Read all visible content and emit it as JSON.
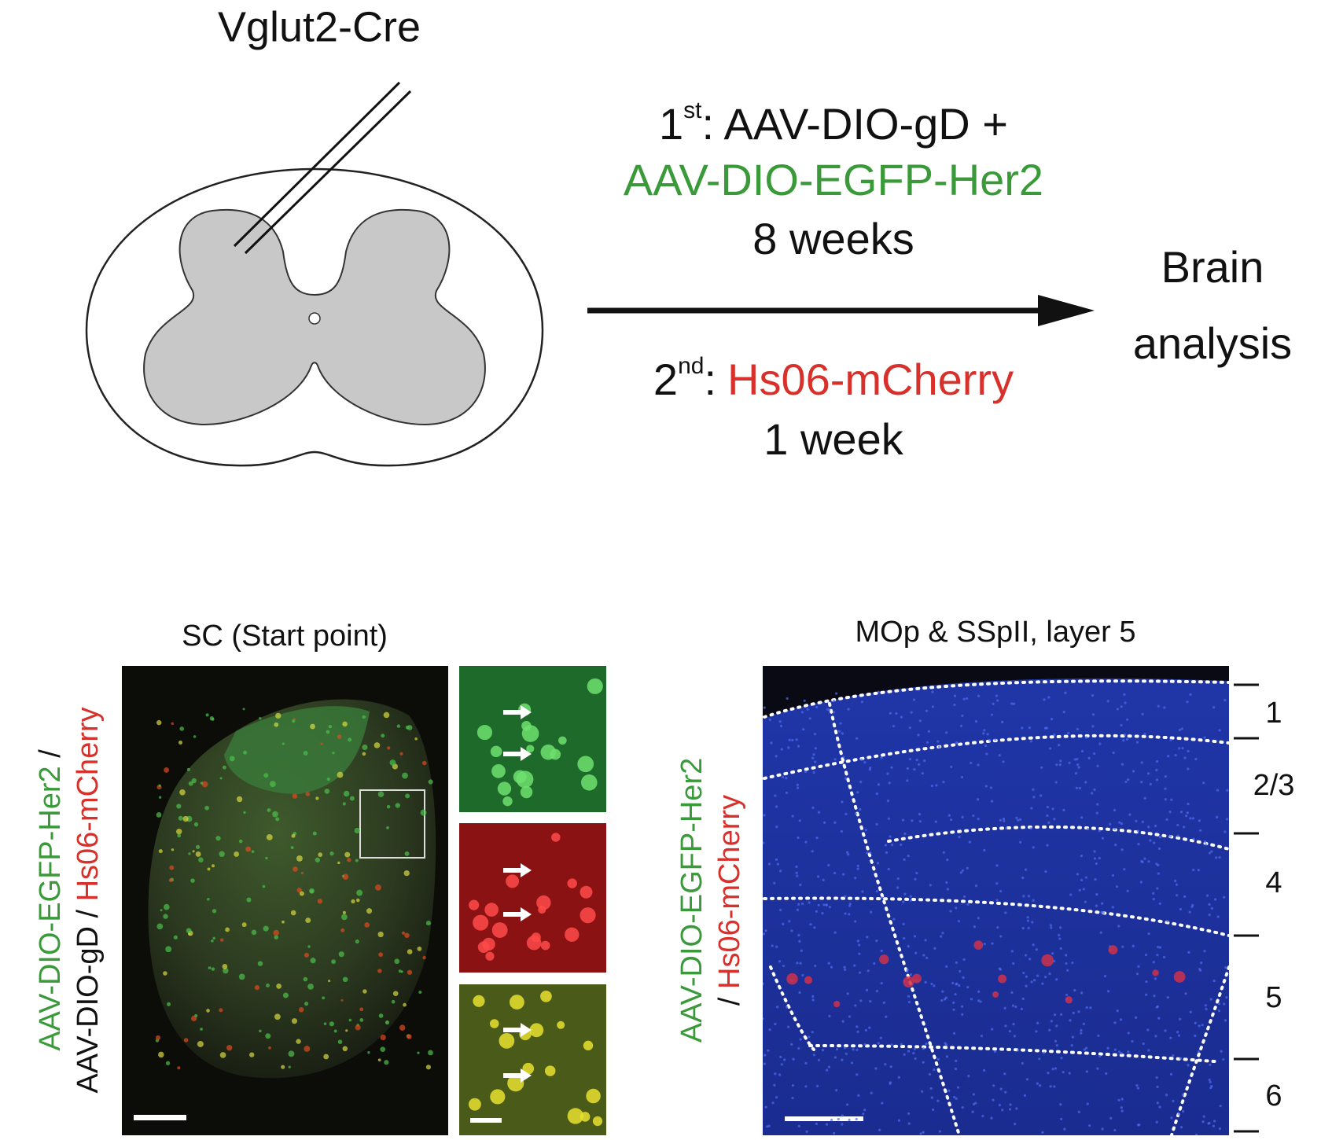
{
  "schematic": {
    "mouse_line": "Vglut2-Cre",
    "step1": {
      "number": "1",
      "superscript": "st",
      "reagent1": ": AAV-DIO-gD +",
      "reagent2": "AAV-DIO-EGFP-Her2",
      "duration": "8 weeks"
    },
    "step2": {
      "number": "2",
      "superscript": "nd",
      "colon": ":",
      "reagent": "Hs06-mCherry",
      "duration": "1 week"
    },
    "outcome": [
      "Brain",
      "analysis"
    ]
  },
  "left_panel": {
    "title": "SC (Start point)",
    "ylabel_line1": [
      "AAV-DIO-EGFP-Her2",
      " /"
    ],
    "ylabel_line2": [
      "AAV-DIO-gD / ",
      "Hs06-mCherry"
    ]
  },
  "right_panel": {
    "title": "MOp & SSpII, layer 5",
    "ylabel_line1": [
      "AAV-DIO-EGFP-Her2"
    ],
    "ylabel_line2": [
      "/ ",
      "Hs06-mCherry"
    ],
    "layers": [
      "1",
      "2/3",
      "4",
      "5",
      "6"
    ]
  }
}
